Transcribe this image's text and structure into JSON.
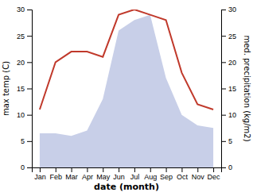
{
  "chart_data": {
    "type": "line",
    "xlabel": "date (month)",
    "ylabel": "max temp (C)",
    "y2label": "med. precipitation (kg/m2)",
    "categories": [
      "Jan",
      "Feb",
      "Mar",
      "Apr",
      "May",
      "Jun",
      "Jul",
      "Aug",
      "Sep",
      "Oct",
      "Nov",
      "Dec"
    ],
    "series": [
      {
        "type": "area",
        "axis": "y2",
        "color": "#c8cfe8",
        "values": [
          6.5,
          6.5,
          6.0,
          7.0,
          13,
          26,
          28,
          29,
          17,
          10,
          8,
          7.5
        ]
      },
      {
        "type": "line",
        "color": "#c0392b",
        "values": [
          11,
          20,
          22,
          22,
          21,
          29,
          30,
          29,
          28,
          18,
          12,
          11
        ]
      }
    ],
    "ylim": [
      0,
      30
    ],
    "yticks": [
      0,
      5,
      10,
      15,
      20,
      25,
      30
    ],
    "y2lim": [
      0,
      30
    ],
    "y2ticks": [
      0,
      5,
      10,
      15,
      20,
      25,
      30
    ]
  }
}
